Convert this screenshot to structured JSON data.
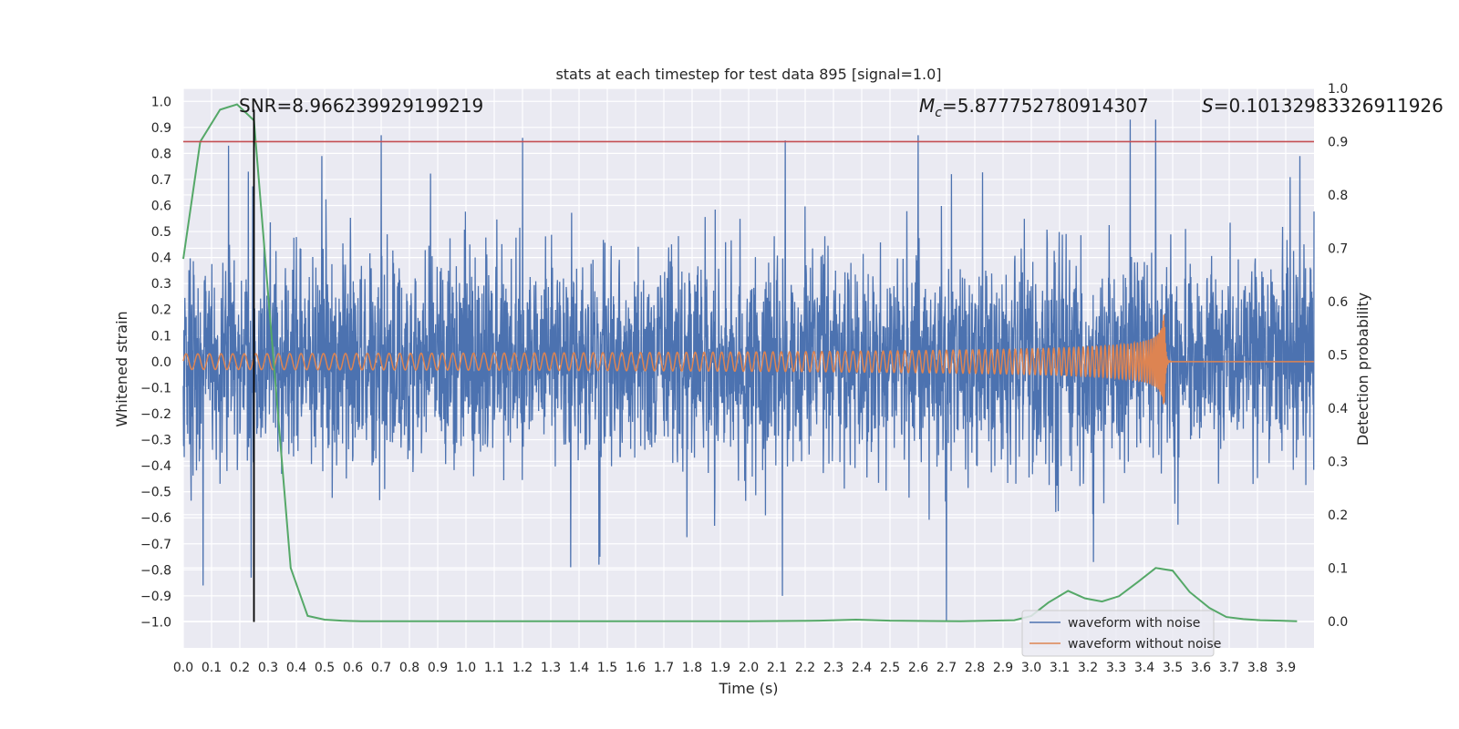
{
  "chart_data": {
    "type": "line",
    "title": "stats at each timestep for test data 895 [signal=1.0]",
    "xlabel": "Time (s)",
    "ylabel": "Whitened strain",
    "y2label": "Detection probability",
    "xlim": [
      0.0,
      4.0
    ],
    "ylim": [
      -1.1,
      1.05
    ],
    "y2lim": [
      -0.05,
      1.0
    ],
    "xticks": [
      "0.0",
      "0.1",
      "0.2",
      "0.3",
      "0.4",
      "0.5",
      "0.6",
      "0.7",
      "0.8",
      "0.9",
      "1.0",
      "1.1",
      "1.2",
      "1.3",
      "1.4",
      "1.5",
      "1.6",
      "1.7",
      "1.8",
      "1.9",
      "2.0",
      "2.1",
      "2.2",
      "2.3",
      "2.4",
      "2.5",
      "2.6",
      "2.7",
      "2.8",
      "2.9",
      "3.0",
      "3.1",
      "3.2",
      "3.3",
      "3.4",
      "3.5",
      "3.6",
      "3.7",
      "3.8",
      "3.9"
    ],
    "yticks": [
      "1.0",
      "0.9",
      "0.8",
      "0.7",
      "0.6",
      "0.5",
      "0.4",
      "0.3",
      "0.2",
      "0.1",
      "0.0",
      "−0.1",
      "−0.2",
      "−0.3",
      "−0.4",
      "−0.5",
      "−0.6",
      "−0.7",
      "−0.8",
      "−0.9",
      "−1.0"
    ],
    "y2ticks": [
      "1.0",
      "0.9",
      "0.8",
      "0.7",
      "0.6",
      "0.5",
      "0.4",
      "0.3",
      "0.2",
      "0.1",
      "0.0"
    ],
    "grid": true,
    "legend_position": "bottom-right",
    "series": [
      {
        "name": "waveform with noise",
        "color": "#4c72b0",
        "axis": "left",
        "description": "dense noisy strain, amplitude mostly within ±0.5, spikes to about ±0.9",
        "peaks": [
          {
            "x": 0.16,
            "y": 0.83
          },
          {
            "x": 0.23,
            "y": 0.73
          },
          {
            "x": 0.49,
            "y": 0.79
          },
          {
            "x": 0.7,
            "y": 0.87
          },
          {
            "x": 1.2,
            "y": 0.86
          },
          {
            "x": 2.13,
            "y": 0.85
          },
          {
            "x": 2.6,
            "y": 0.87
          },
          {
            "x": 3.35,
            "y": 0.93
          },
          {
            "x": 3.44,
            "y": 0.93
          },
          {
            "x": 3.95,
            "y": 0.79
          },
          {
            "x": 0.07,
            "y": -0.86
          },
          {
            "x": 0.24,
            "y": -0.83
          },
          {
            "x": 1.37,
            "y": -0.79
          },
          {
            "x": 1.47,
            "y": -0.78
          },
          {
            "x": 2.12,
            "y": -0.9
          },
          {
            "x": 2.7,
            "y": -1.0
          },
          {
            "x": 3.22,
            "y": -0.77
          }
        ]
      },
      {
        "name": "waveform without noise",
        "color": "#dd8452",
        "axis": "left",
        "description": "chirp oscillation, amplitude rising from about 0.03 to 0.22 with merger near 3.47 s, flat at 0 afterwards",
        "merger_time": 3.47,
        "start_amplitude": 0.03,
        "peak_amplitude": 0.22
      },
      {
        "name": "detection probability",
        "color": "#55a868",
        "axis": "right",
        "x": [
          0.0,
          0.06,
          0.13,
          0.19,
          0.25,
          0.31,
          0.38,
          0.44,
          0.5,
          0.56,
          0.63,
          1.0,
          1.5,
          2.0,
          2.25,
          2.38,
          2.5,
          2.75,
          2.94,
          3.0,
          3.06,
          3.13,
          3.19,
          3.25,
          3.31,
          3.38,
          3.44,
          3.5,
          3.56,
          3.63,
          3.69,
          3.75,
          3.81,
          3.88,
          3.94
        ],
        "y": [
          0.68,
          0.9,
          0.96,
          0.97,
          0.94,
          0.55,
          0.1,
          0.01,
          0.003,
          0.001,
          0.0,
          0.0,
          0.0,
          0.0,
          0.001,
          0.003,
          0.001,
          0.0,
          0.002,
          0.01,
          0.035,
          0.057,
          0.043,
          0.037,
          0.047,
          0.075,
          0.1,
          0.095,
          0.055,
          0.025,
          0.008,
          0.004,
          0.002,
          0.001,
          0.0
        ]
      }
    ],
    "threshold_line": {
      "color": "#c44e52",
      "y2": 0.9
    },
    "vertical_marker": {
      "color": "#000000",
      "x": 0.25,
      "y_from": -1.0,
      "y_to": 0.96
    },
    "annotations": {
      "snr": "SNR=8.966239929199219",
      "mc_symbol": "M",
      "mc_sub": "c",
      "mc_value": "=5.877752780914307",
      "s_symbol": "S",
      "s_value": "=0.10132983326911926"
    }
  }
}
